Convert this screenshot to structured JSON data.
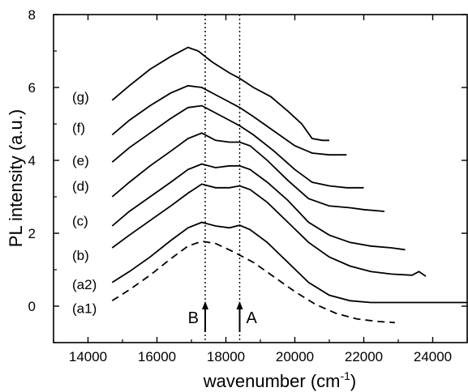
{
  "chart_data": {
    "type": "line",
    "title": "",
    "xlabel": "wavenumber (cm",
    "xlabel_sup": "-1",
    "xlabel_end": ")",
    "ylabel": "PL intensity (a.u.)",
    "xlim": [
      13000,
      25000
    ],
    "ylim": [
      -1,
      8
    ],
    "xticks": [
      14000,
      16000,
      18000,
      20000,
      22000,
      24000
    ],
    "yticks": [
      0,
      2,
      4,
      6,
      8
    ],
    "grid": false,
    "legend": "none",
    "markers": [
      {
        "label": "B",
        "x": 17400
      },
      {
        "label": "A",
        "x": 18400
      }
    ],
    "series": [
      {
        "name": "(a1)",
        "style": "dashed",
        "label_y": -0.05,
        "points": [
          [
            14700,
            0.15
          ],
          [
            15200,
            0.45
          ],
          [
            15800,
            0.85
          ],
          [
            16400,
            1.3
          ],
          [
            16900,
            1.65
          ],
          [
            17300,
            1.78
          ],
          [
            17700,
            1.72
          ],
          [
            18200,
            1.5
          ],
          [
            18800,
            1.2
          ],
          [
            19400,
            0.8
          ],
          [
            20000,
            0.4
          ],
          [
            20600,
            0.05
          ],
          [
            21200,
            -0.2
          ],
          [
            21800,
            -0.35
          ],
          [
            22400,
            -0.42
          ],
          [
            22900,
            -0.45
          ]
        ]
      },
      {
        "name": "(a2)",
        "style": "solid",
        "label_y": 0.6,
        "points": [
          [
            14700,
            0.65
          ],
          [
            15200,
            0.95
          ],
          [
            15800,
            1.35
          ],
          [
            16400,
            1.8
          ],
          [
            16900,
            2.15
          ],
          [
            17300,
            2.3
          ],
          [
            17700,
            2.2
          ],
          [
            18100,
            2.15
          ],
          [
            18400,
            2.22
          ],
          [
            18700,
            2.1
          ],
          [
            19200,
            1.75
          ],
          [
            19800,
            1.2
          ],
          [
            20400,
            0.65
          ],
          [
            21000,
            0.3
          ],
          [
            21600,
            0.15
          ],
          [
            22200,
            0.1
          ],
          [
            23000,
            0.1
          ],
          [
            24000,
            0.1
          ],
          [
            25000,
            0.1
          ]
        ]
      },
      {
        "name": "(b)",
        "style": "solid",
        "label_y": 1.4,
        "points": [
          [
            14700,
            1.6
          ],
          [
            15200,
            1.95
          ],
          [
            15800,
            2.35
          ],
          [
            16400,
            2.75
          ],
          [
            16900,
            3.1
          ],
          [
            17300,
            3.35
          ],
          [
            17700,
            3.25
          ],
          [
            18100,
            3.25
          ],
          [
            18400,
            3.3
          ],
          [
            18700,
            3.2
          ],
          [
            19200,
            2.85
          ],
          [
            19800,
            2.3
          ],
          [
            20400,
            1.75
          ],
          [
            21000,
            1.35
          ],
          [
            21600,
            1.1
          ],
          [
            22200,
            0.95
          ],
          [
            22800,
            0.88
          ],
          [
            23400,
            0.85
          ],
          [
            23600,
            0.95
          ],
          [
            23800,
            0.82
          ]
        ]
      },
      {
        "name": "(c)",
        "style": "solid",
        "label_y": 2.35,
        "points": [
          [
            14700,
            2.2
          ],
          [
            15200,
            2.6
          ],
          [
            15800,
            3.0
          ],
          [
            16400,
            3.4
          ],
          [
            16900,
            3.75
          ],
          [
            17300,
            3.9
          ],
          [
            17700,
            3.8
          ],
          [
            18100,
            3.85
          ],
          [
            18400,
            3.85
          ],
          [
            18700,
            3.75
          ],
          [
            19200,
            3.4
          ],
          [
            19800,
            2.9
          ],
          [
            20400,
            2.3
          ],
          [
            21000,
            1.95
          ],
          [
            21600,
            1.75
          ],
          [
            22200,
            1.65
          ],
          [
            22800,
            1.6
          ],
          [
            23200,
            1.55
          ]
        ]
      },
      {
        "name": "(d)",
        "style": "solid",
        "label_y": 3.3,
        "points": [
          [
            14700,
            3.0
          ],
          [
            15200,
            3.4
          ],
          [
            15800,
            3.85
          ],
          [
            16400,
            4.25
          ],
          [
            16900,
            4.6
          ],
          [
            17300,
            4.75
          ],
          [
            17700,
            4.55
          ],
          [
            18100,
            4.5
          ],
          [
            18400,
            4.5
          ],
          [
            18700,
            4.4
          ],
          [
            19200,
            4.0
          ],
          [
            19800,
            3.45
          ],
          [
            20400,
            2.95
          ],
          [
            21000,
            2.75
          ],
          [
            21600,
            2.7
          ],
          [
            22000,
            2.65
          ],
          [
            22600,
            2.6
          ]
        ]
      },
      {
        "name": "(e)",
        "style": "solid",
        "label_y": 4.0,
        "points": [
          [
            14700,
            3.95
          ],
          [
            15200,
            4.35
          ],
          [
            15800,
            4.75
          ],
          [
            16400,
            5.15
          ],
          [
            16900,
            5.45
          ],
          [
            17300,
            5.5
          ],
          [
            17700,
            5.3
          ],
          [
            18100,
            5.1
          ],
          [
            18400,
            4.95
          ],
          [
            18800,
            4.7
          ],
          [
            19400,
            4.25
          ],
          [
            20000,
            3.75
          ],
          [
            20500,
            3.4
          ],
          [
            21000,
            3.3
          ],
          [
            21500,
            3.25
          ],
          [
            22000,
            3.25
          ]
        ]
      },
      {
        "name": "(f)",
        "style": "solid",
        "label_y": 4.9,
        "points": [
          [
            14700,
            4.7
          ],
          [
            15200,
            5.1
          ],
          [
            15800,
            5.5
          ],
          [
            16400,
            5.85
          ],
          [
            16900,
            6.05
          ],
          [
            17300,
            6.0
          ],
          [
            17700,
            5.8
          ],
          [
            18100,
            5.6
          ],
          [
            18400,
            5.45
          ],
          [
            18800,
            5.2
          ],
          [
            19400,
            4.8
          ],
          [
            20000,
            4.4
          ],
          [
            20500,
            4.2
          ],
          [
            21000,
            4.15
          ],
          [
            21500,
            4.15
          ]
        ]
      },
      {
        "name": "(g)",
        "style": "solid",
        "label_y": 5.75,
        "points": [
          [
            14700,
            5.65
          ],
          [
            15200,
            6.05
          ],
          [
            15800,
            6.5
          ],
          [
            16400,
            6.85
          ],
          [
            16900,
            7.1
          ],
          [
            17200,
            7.0
          ],
          [
            17600,
            6.7
          ],
          [
            18100,
            6.4
          ],
          [
            18400,
            6.25
          ],
          [
            18800,
            6.0
          ],
          [
            19300,
            5.75
          ],
          [
            19800,
            5.35
          ],
          [
            20200,
            5.0
          ],
          [
            20500,
            4.6
          ],
          [
            20800,
            4.55
          ],
          [
            21000,
            4.55
          ]
        ]
      }
    ]
  }
}
